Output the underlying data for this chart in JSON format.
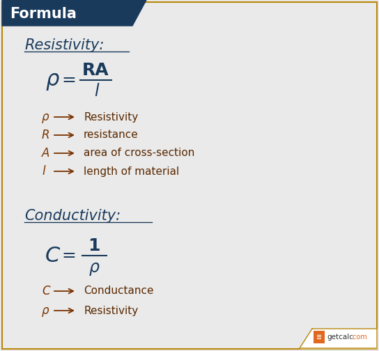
{
  "bg_color": "#eaeaea",
  "header_bg": "#1a3a5c",
  "header_text": "Formula",
  "header_text_color": "#ffffff",
  "border_color": "#b8860b",
  "title_color": "#1a3a5c",
  "formula_color": "#1a3a5c",
  "arrow_color": "#7a3300",
  "desc_color": "#5a2800",
  "resistivity_title": "Resistivity:",
  "conductivity_title": "Conductivity:",
  "res_symbols": [
    "ρ",
    "R",
    "A",
    "l"
  ],
  "res_descriptions": [
    "Resistivity",
    "resistance",
    "area of cross-section",
    "length of material"
  ],
  "cond_symbols": [
    "C",
    "ρ"
  ],
  "cond_descriptions": [
    "Conductance",
    "Resistivity"
  ],
  "fig_width": 5.44,
  "fig_height": 5.04,
  "dpi": 100
}
